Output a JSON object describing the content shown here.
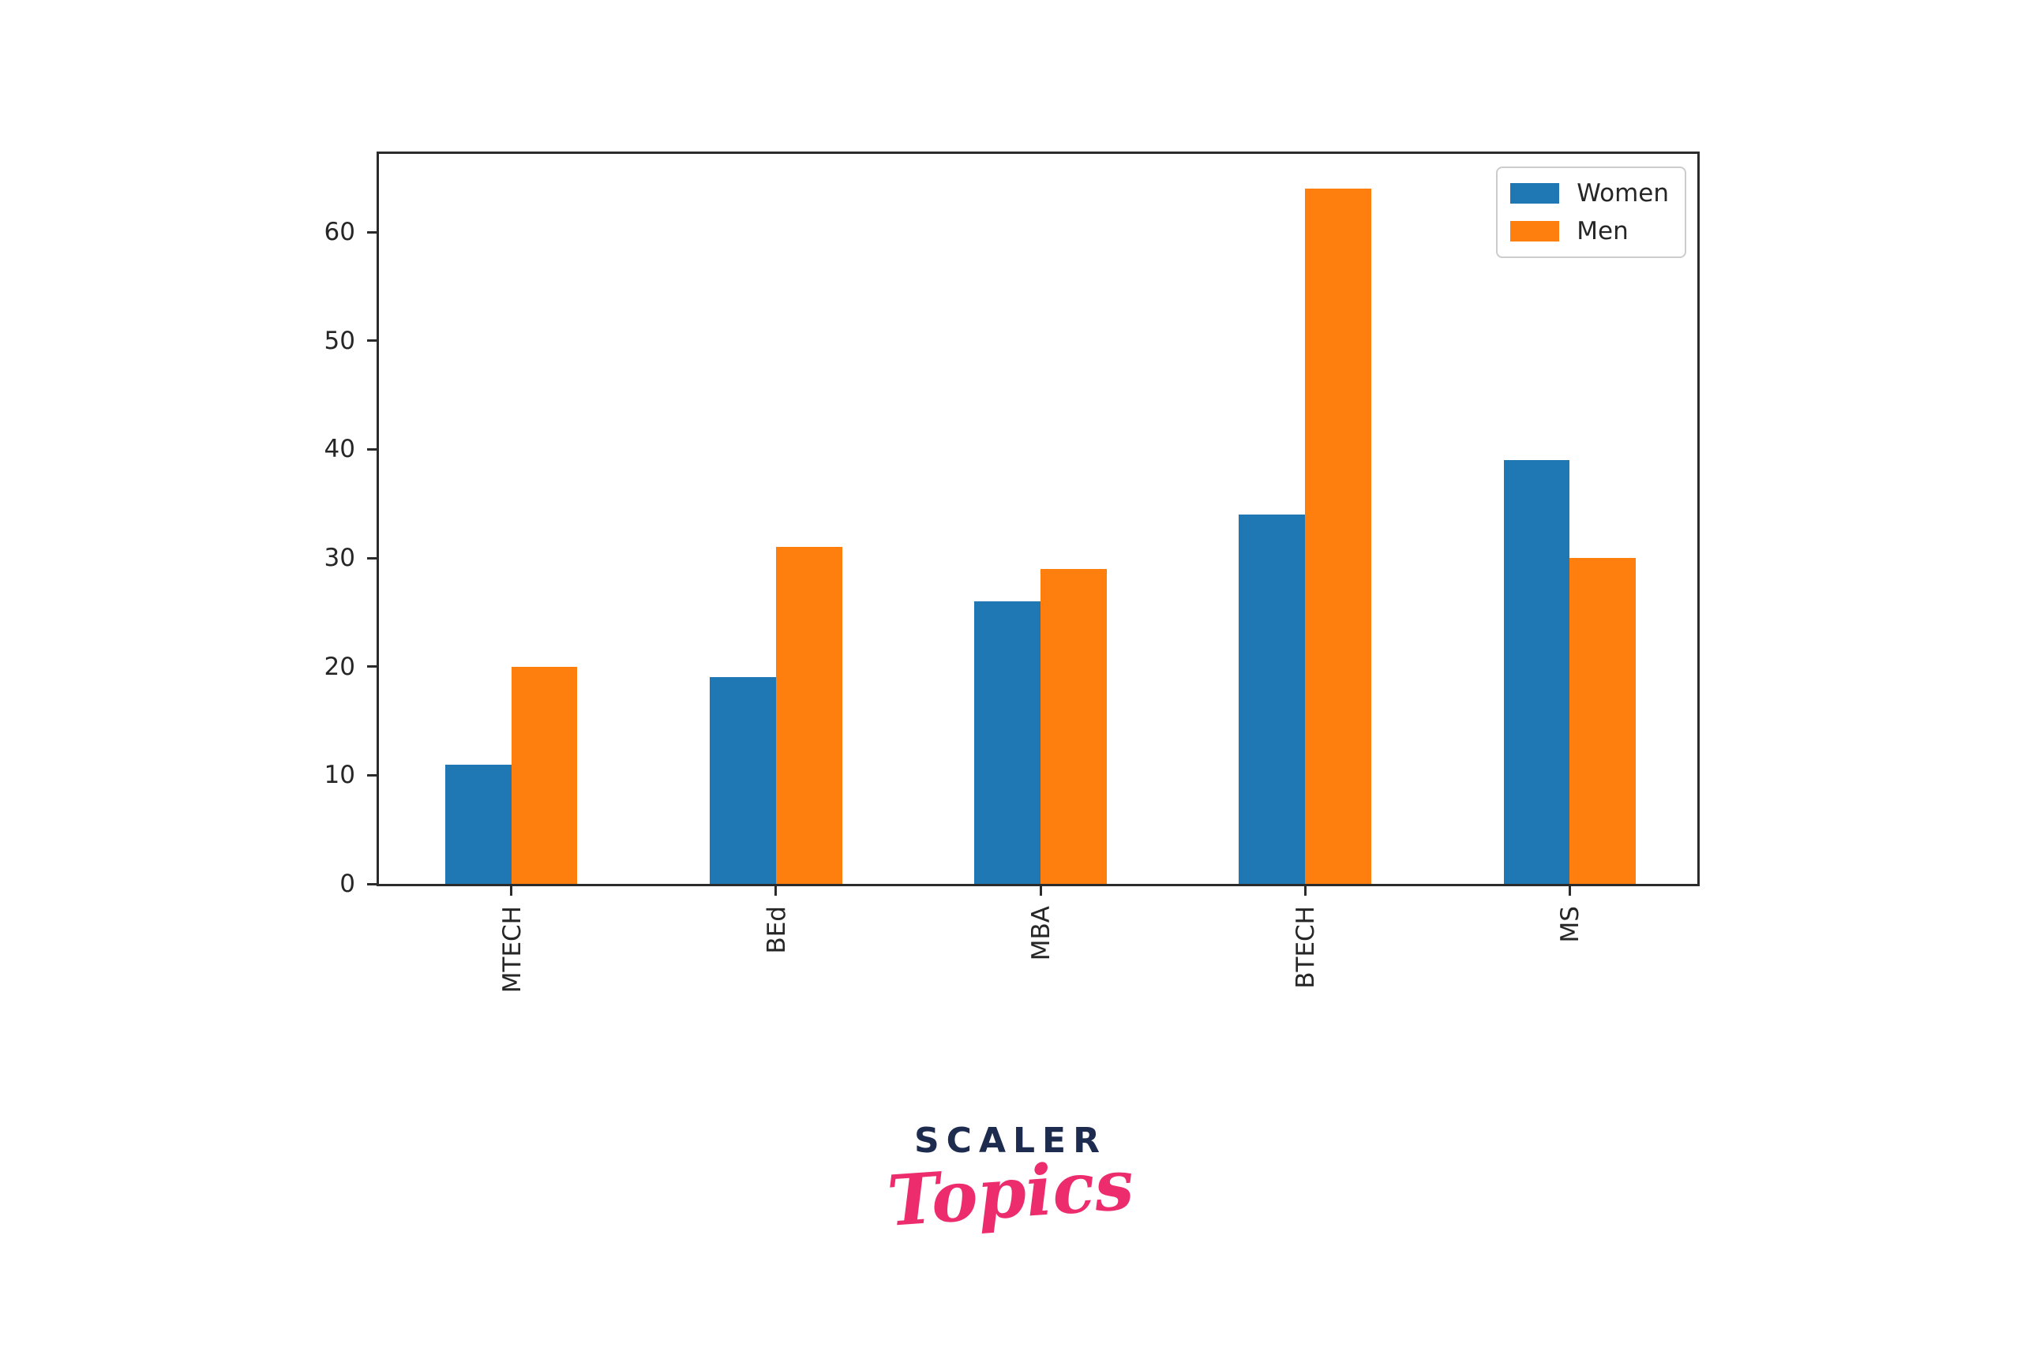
{
  "chart_data": {
    "type": "bar",
    "categories": [
      "MTECH",
      "BEd",
      "MBA",
      "BTECH",
      "MS"
    ],
    "series": [
      {
        "name": "Women",
        "color": "#1f77b4",
        "values": [
          11,
          19,
          26,
          34,
          39
        ]
      },
      {
        "name": "Men",
        "color": "#ff7f0e",
        "values": [
          20,
          31,
          29,
          64,
          30
        ]
      }
    ],
    "title": "",
    "xlabel": "",
    "ylabel": "",
    "ylim": [
      0,
      67.2
    ],
    "yticks": [
      0,
      10,
      20,
      30,
      40,
      50,
      60
    ],
    "bar_width_fraction": 0.25,
    "xtick_label_rotation": "vertical",
    "grid": false,
    "legend_position": "upper right"
  },
  "legend": {
    "items": [
      {
        "label": "Women",
        "color": "#1f77b4"
      },
      {
        "label": "Men",
        "color": "#ff7f0e"
      }
    ]
  },
  "watermark": {
    "line1": "SCALER",
    "line2": "Topics",
    "line1_color": "#1c2b4e",
    "line2_color": "#ec2c6d"
  },
  "colors": {
    "axis": "#2b2b2b",
    "tick_label": "#262626",
    "legend_border": "#cccccc",
    "background": "#ffffff"
  }
}
